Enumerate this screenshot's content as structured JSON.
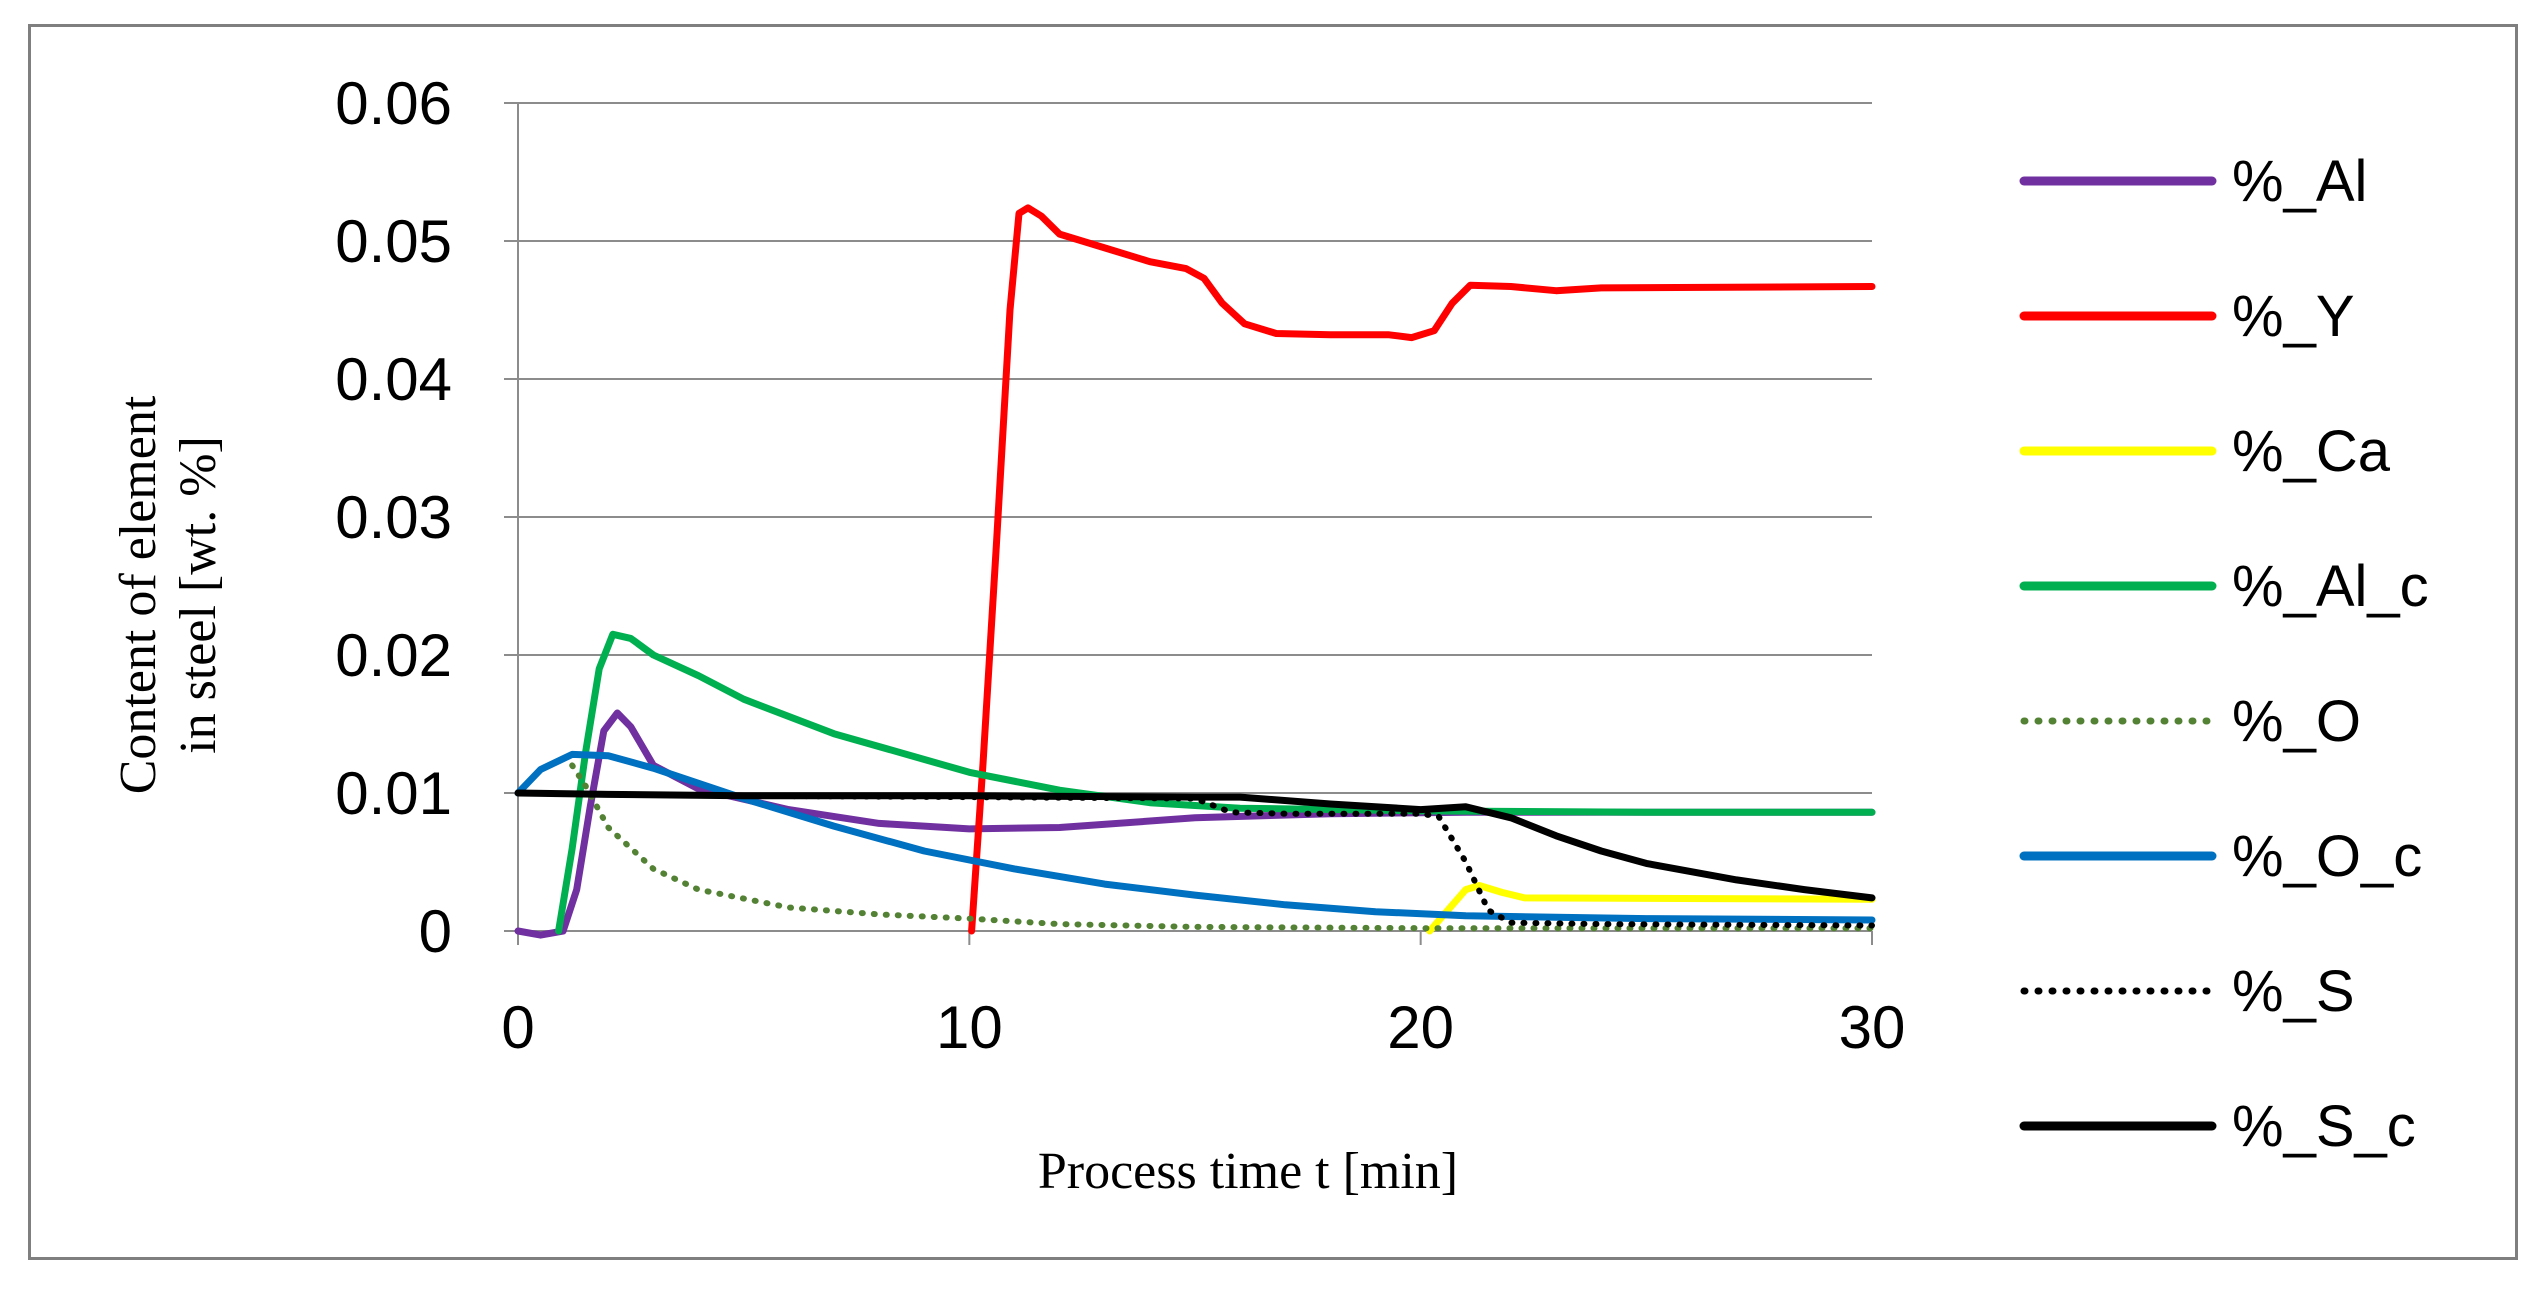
{
  "chart_data": {
    "type": "line",
    "title": "",
    "xlabel": "Process time t [min]",
    "ylabel_line1": "Content of element",
    "ylabel_line2": "in steel [wt. %]",
    "xlim": [
      0,
      30
    ],
    "ylim": [
      0,
      0.06
    ],
    "x_ticks": [
      0,
      10,
      20,
      30
    ],
    "x_tick_labels": [
      "0",
      "10",
      "20",
      "30"
    ],
    "y_ticks": [
      0,
      0.01,
      0.02,
      0.03,
      0.04,
      0.05,
      0.06
    ],
    "y_tick_labels": [
      "0",
      "0.01",
      "0.02",
      "0.03",
      "0.04",
      "0.05",
      "0.06"
    ],
    "grid": "horizontal",
    "legend_position": "right",
    "series": [
      {
        "name": "%_Al",
        "color": "#7030a0",
        "dash": "solid",
        "points": [
          [
            0,
            0
          ],
          [
            0.5,
            -0.0003
          ],
          [
            1,
            0
          ],
          [
            1.3,
            0.003
          ],
          [
            1.6,
            0.009
          ],
          [
            1.9,
            0.0145
          ],
          [
            2.2,
            0.0158
          ],
          [
            2.5,
            0.0148
          ],
          [
            3,
            0.012
          ],
          [
            4,
            0.0103
          ],
          [
            6,
            0.0088
          ],
          [
            8,
            0.0078
          ],
          [
            10,
            0.0074
          ],
          [
            12,
            0.0075
          ],
          [
            15,
            0.0082
          ],
          [
            18,
            0.0085
          ],
          [
            21,
            0.0086
          ],
          [
            25,
            0.0086
          ],
          [
            30,
            0.0086
          ]
        ]
      },
      {
        "name": "%_Y",
        "color": "#ff0000",
        "dash": "solid",
        "points": [
          [
            10.05,
            0
          ],
          [
            10.3,
            0.012
          ],
          [
            10.6,
            0.028
          ],
          [
            10.9,
            0.045
          ],
          [
            11.1,
            0.052
          ],
          [
            11.3,
            0.0524
          ],
          [
            11.6,
            0.0518
          ],
          [
            12,
            0.0505
          ],
          [
            13,
            0.0495
          ],
          [
            14,
            0.0485
          ],
          [
            14.8,
            0.048
          ],
          [
            15.2,
            0.0473
          ],
          [
            15.6,
            0.0455
          ],
          [
            16.1,
            0.044
          ],
          [
            16.8,
            0.0433
          ],
          [
            18,
            0.0432
          ],
          [
            19.3,
            0.0432
          ],
          [
            19.8,
            0.043
          ],
          [
            20.3,
            0.0435
          ],
          [
            20.7,
            0.0455
          ],
          [
            21.1,
            0.0468
          ],
          [
            22,
            0.0467
          ],
          [
            23,
            0.0464
          ],
          [
            24,
            0.0466
          ],
          [
            30,
            0.0467
          ]
        ]
      },
      {
        "name": "%_Ca",
        "color": "#ffff00",
        "dash": "solid",
        "points": [
          [
            20.2,
            0
          ],
          [
            20.6,
            0.0015
          ],
          [
            21,
            0.003
          ],
          [
            21.3,
            0.0033
          ],
          [
            21.8,
            0.0028
          ],
          [
            22.3,
            0.0024
          ],
          [
            30,
            0.0023
          ]
        ]
      },
      {
        "name": "%_Al_c",
        "color": "#00b050",
        "dash": "solid",
        "points": [
          [
            0.9,
            0
          ],
          [
            1.2,
            0.006
          ],
          [
            1.5,
            0.013
          ],
          [
            1.8,
            0.019
          ],
          [
            2.1,
            0.0215
          ],
          [
            2.5,
            0.0212
          ],
          [
            3,
            0.02
          ],
          [
            4,
            0.0185
          ],
          [
            5,
            0.0168
          ],
          [
            7,
            0.0143
          ],
          [
            10,
            0.0115
          ],
          [
            12,
            0.0102
          ],
          [
            14,
            0.0093
          ],
          [
            16,
            0.0089
          ],
          [
            20,
            0.0087
          ],
          [
            25,
            0.0086
          ],
          [
            30,
            0.0086
          ]
        ]
      },
      {
        "name": "%_O",
        "color": "#548235",
        "dash": "dot",
        "points": [
          [
            1.2,
            0.012
          ],
          [
            1.5,
            0.0105
          ],
          [
            2,
            0.0075
          ],
          [
            3,
            0.0045
          ],
          [
            4,
            0.003
          ],
          [
            6,
            0.0017
          ],
          [
            8,
            0.0012
          ],
          [
            10,
            0.0009
          ],
          [
            12,
            0.0005
          ],
          [
            15,
            0.0003
          ],
          [
            20,
            0.0002
          ],
          [
            25,
            0.0002
          ],
          [
            30,
            0.0002
          ]
        ]
      },
      {
        "name": "%_O_c",
        "color": "#0070c0",
        "dash": "solid",
        "points": [
          [
            0,
            0.01
          ],
          [
            0.5,
            0.0117
          ],
          [
            1.2,
            0.0128
          ],
          [
            2,
            0.0127
          ],
          [
            3,
            0.0118
          ],
          [
            5,
            0.0096
          ],
          [
            7,
            0.0076
          ],
          [
            9,
            0.0058
          ],
          [
            11,
            0.0045
          ],
          [
            13,
            0.0034
          ],
          [
            15,
            0.0026
          ],
          [
            17,
            0.0019
          ],
          [
            19,
            0.0014
          ],
          [
            21,
            0.0011
          ],
          [
            23,
            0.001
          ],
          [
            25,
            0.0009
          ],
          [
            30,
            0.0008
          ]
        ]
      },
      {
        "name": "%_S",
        "color": "#000000",
        "dash": "dot",
        "points": [
          [
            0,
            0.01
          ],
          [
            5,
            0.0098
          ],
          [
            10,
            0.0097
          ],
          [
            15,
            0.0096
          ],
          [
            15.8,
            0.0086
          ],
          [
            17,
            0.0085
          ],
          [
            20,
            0.0085
          ],
          [
            20.4,
            0.0083
          ],
          [
            21,
            0.005
          ],
          [
            21.5,
            0.0015
          ],
          [
            22,
            0.0006
          ],
          [
            24,
            0.0005
          ],
          [
            30,
            0.0004
          ]
        ]
      },
      {
        "name": "%_S_c",
        "color": "#000000",
        "dash": "solid",
        "points": [
          [
            0,
            0.01
          ],
          [
            2,
            0.0099
          ],
          [
            5,
            0.0098
          ],
          [
            10,
            0.0098
          ],
          [
            15,
            0.0097
          ],
          [
            16,
            0.0097
          ],
          [
            18,
            0.0092
          ],
          [
            20,
            0.0088
          ],
          [
            21,
            0.009
          ],
          [
            22,
            0.0082
          ],
          [
            23,
            0.0069
          ],
          [
            24,
            0.0058
          ],
          [
            25,
            0.0049
          ],
          [
            27,
            0.0037
          ],
          [
            28.5,
            0.003
          ],
          [
            30,
            0.0024
          ]
        ]
      }
    ]
  }
}
